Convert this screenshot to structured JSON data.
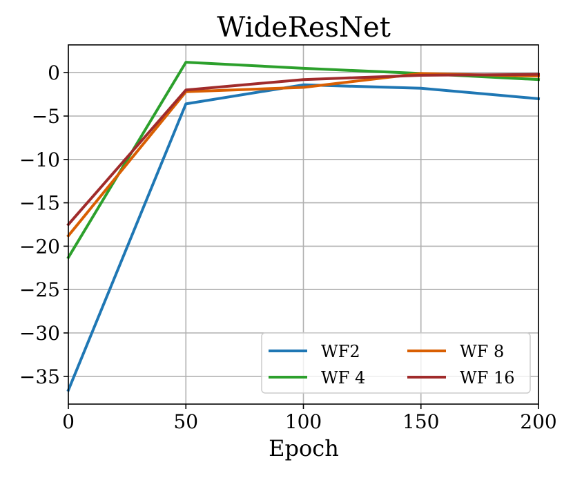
{
  "chart_data": {
    "type": "line",
    "title": "WideResNet",
    "xlabel": "Epoch",
    "ylabel": "",
    "x": [
      0,
      50,
      100,
      150,
      200
    ],
    "xlim": [
      0,
      200
    ],
    "ylim": [
      -38.2,
      3.2
    ],
    "xticks": [
      0,
      50,
      100,
      150,
      200
    ],
    "yticks": [
      0,
      -5,
      -10,
      -15,
      -20,
      -25,
      -30,
      -35
    ],
    "ytick_labels": [
      "0",
      "−5",
      "−10",
      "−15",
      "−20",
      "−25",
      "−30",
      "−35"
    ],
    "grid": true,
    "legend": {
      "placement": "lower-right",
      "columns": 2
    },
    "series": [
      {
        "name": "WF2",
        "color": "#1f77b4",
        "values": [
          -36.6,
          -3.6,
          -1.4,
          -1.8,
          -3.0
        ]
      },
      {
        "name": "WF 4",
        "color": "#2ca02c",
        "values": [
          -21.3,
          1.2,
          0.5,
          -0.1,
          -0.8
        ]
      },
      {
        "name": "WF 8",
        "color": "#d95f02",
        "values": [
          -18.8,
          -2.2,
          -1.7,
          -0.1,
          -0.4
        ]
      },
      {
        "name": "WF 16",
        "color": "#a02b2b",
        "values": [
          -17.5,
          -2.0,
          -0.8,
          -0.3,
          -0.2
        ]
      }
    ]
  }
}
